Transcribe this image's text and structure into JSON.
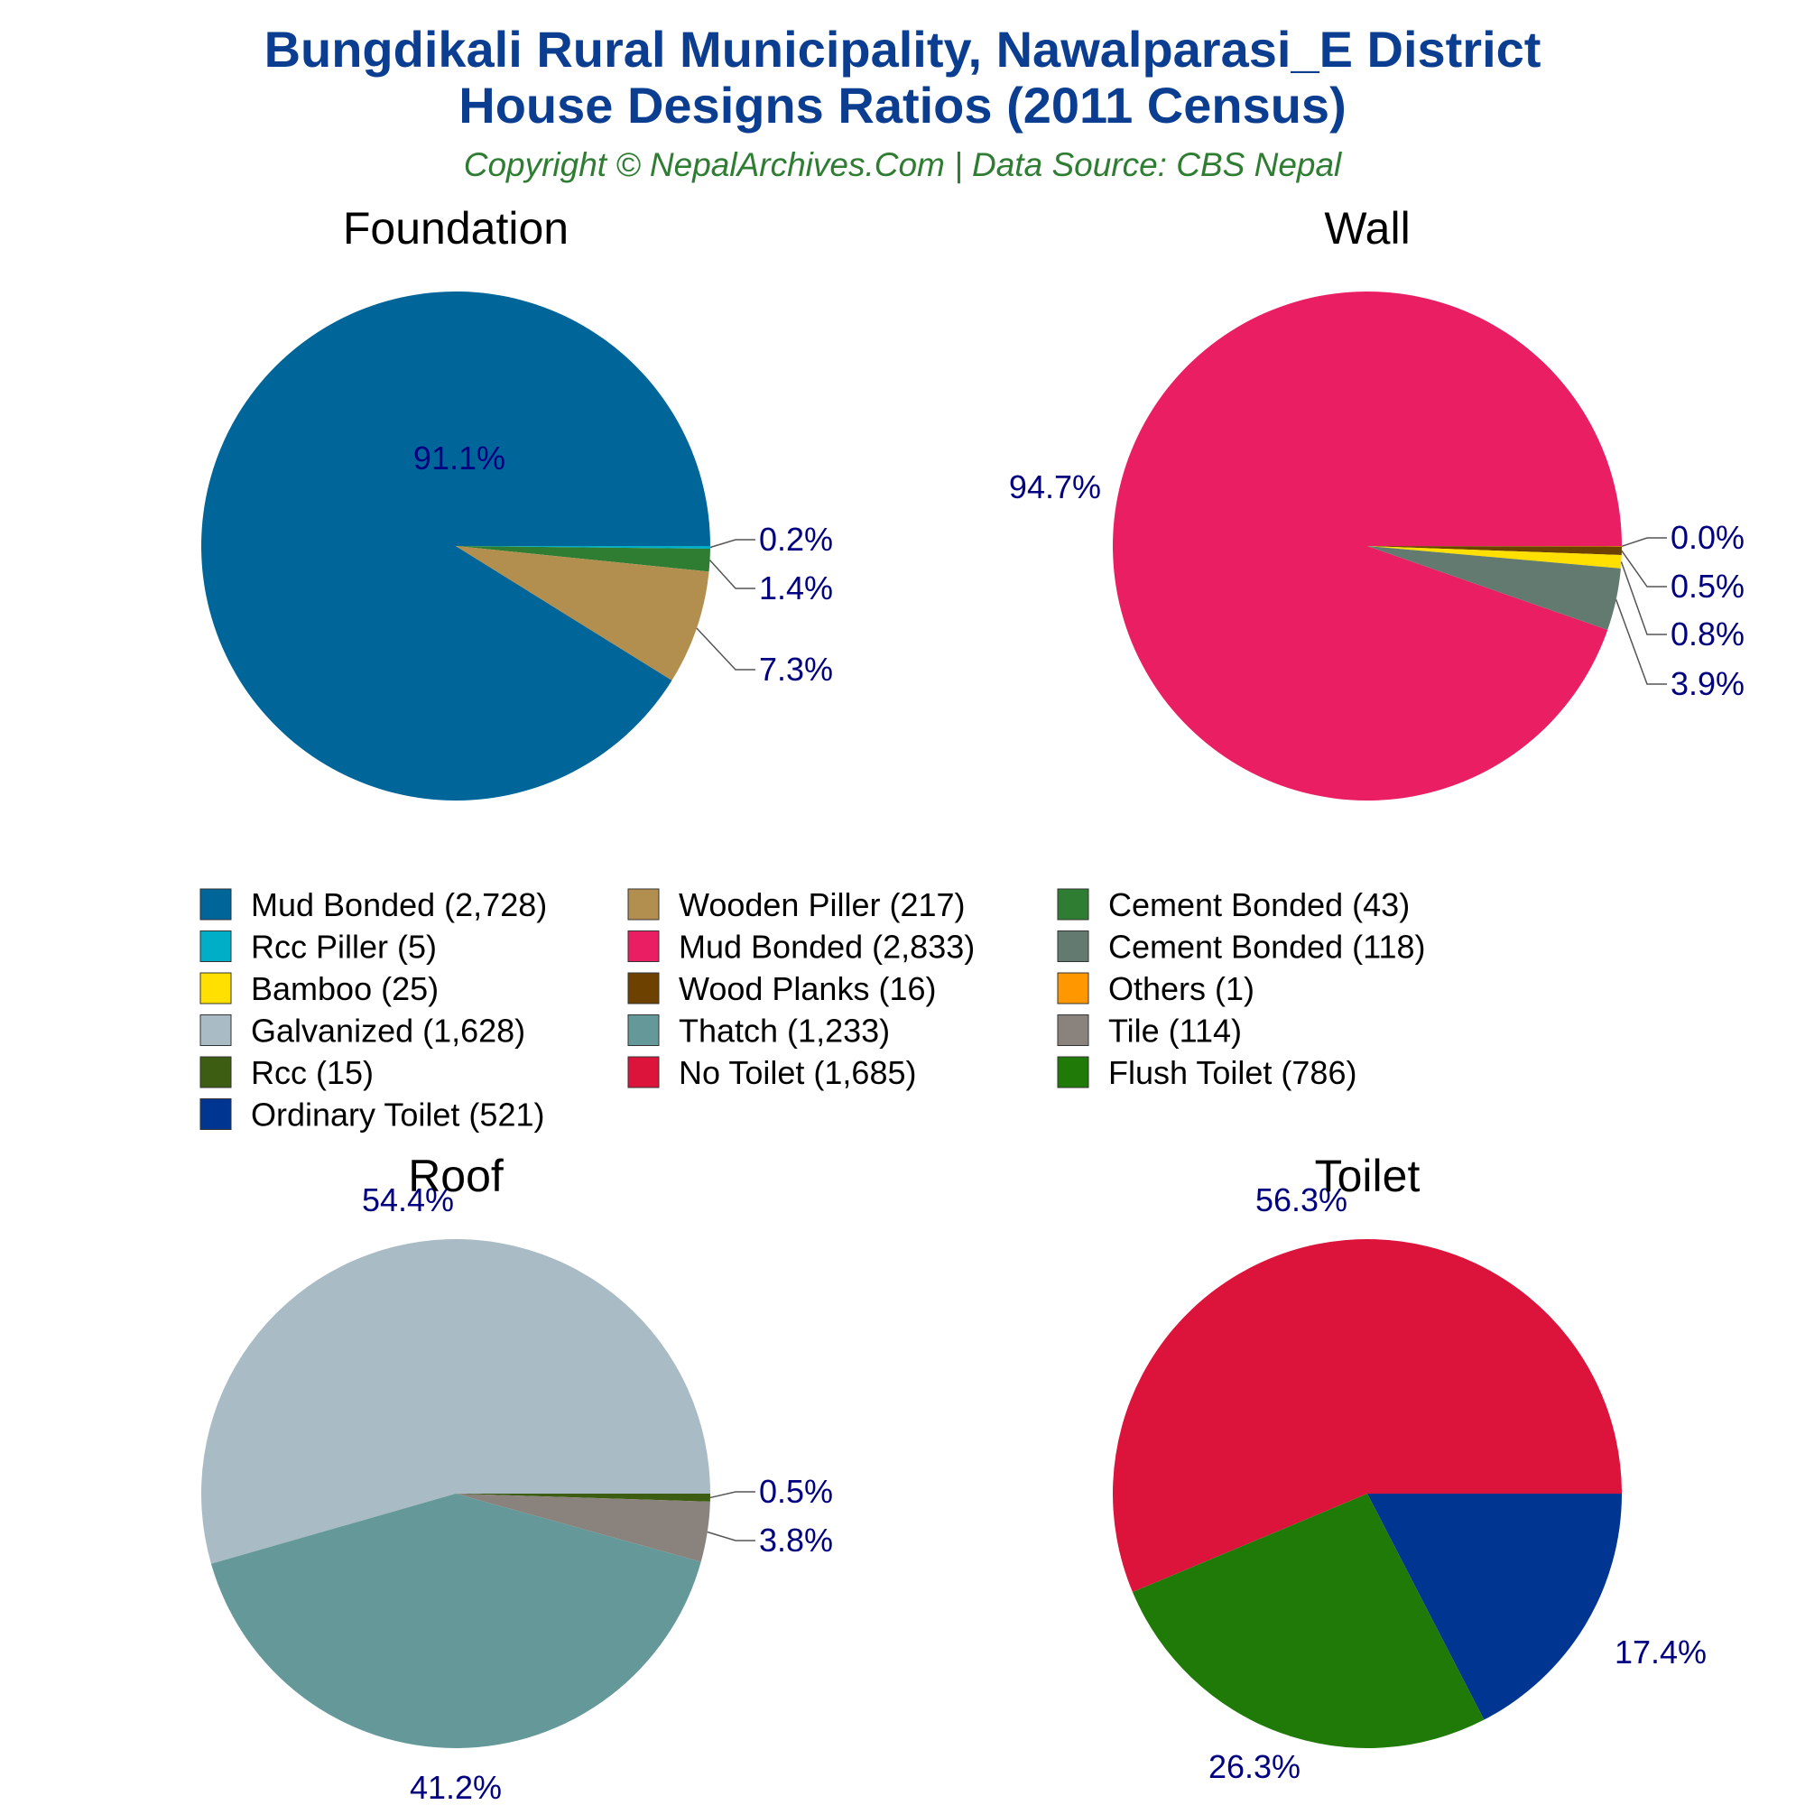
{
  "header": {
    "title_line1": "Bungdikali Rural Municipality, Nawalparasi_E District",
    "title_line2": "House Designs Ratios (2011 Census)",
    "subtitle": "Copyright © NepalArchives.Com | Data Source: CBS Nepal"
  },
  "chart_data": [
    {
      "type": "pie",
      "title": "Foundation",
      "slices": [
        {
          "label": "Mud Bonded",
          "value": 2728,
          "pct_label": "91.1%",
          "color": "#006699"
        },
        {
          "label": "Rcc Piller",
          "value": 5,
          "pct_label": "0.2%",
          "color": "#00aec7"
        },
        {
          "label": "Cement Bonded",
          "value": 43,
          "pct_label": "1.4%",
          "color": "#2e7d32"
        },
        {
          "label": "Wooden Piller",
          "value": 217,
          "pct_label": "7.3%",
          "color": "#b38f4f"
        }
      ]
    },
    {
      "type": "pie",
      "title": "Wall",
      "slices": [
        {
          "label": "Mud Bonded",
          "value": 2833,
          "pct_label": "94.7%",
          "color": "#e91e63"
        },
        {
          "label": "Others",
          "value": 1,
          "pct_label": "0.0%",
          "color": "#ff9800"
        },
        {
          "label": "Wood Planks",
          "value": 16,
          "pct_label": "0.5%",
          "color": "#6d4200"
        },
        {
          "label": "Bamboo",
          "value": 25,
          "pct_label": "0.8%",
          "color": "#ffe000"
        },
        {
          "label": "Cement Bonded",
          "value": 118,
          "pct_label": "3.9%",
          "color": "#637a70"
        }
      ]
    },
    {
      "type": "pie",
      "title": "Roof",
      "slices": [
        {
          "label": "Galvanized",
          "value": 1628,
          "pct_label": "54.4%",
          "color": "#a9bbc4"
        },
        {
          "label": "Rcc",
          "value": 15,
          "pct_label": "0.5%",
          "color": "#3d5e12"
        },
        {
          "label": "Tile",
          "value": 114,
          "pct_label": "3.8%",
          "color": "#8a827c"
        },
        {
          "label": "Thatch",
          "value": 1233,
          "pct_label": "41.2%",
          "color": "#659898"
        }
      ]
    },
    {
      "type": "pie",
      "title": "Toilet",
      "slices": [
        {
          "label": "No Toilet",
          "value": 1685,
          "pct_label": "56.3%",
          "color": "#dc143c"
        },
        {
          "label": "Ordinary Toilet",
          "value": 521,
          "pct_label": "17.4%",
          "color": "#003591"
        },
        {
          "label": "Flush Toilet",
          "value": 786,
          "pct_label": "26.3%",
          "color": "#1f7a07"
        }
      ]
    }
  ],
  "legend": [
    {
      "label": "Mud Bonded (2,728)",
      "color": "#006699"
    },
    {
      "label": "Wooden Piller (217)",
      "color": "#b38f4f"
    },
    {
      "label": "Cement Bonded (43)",
      "color": "#2e7d32"
    },
    {
      "label": "Rcc Piller (5)",
      "color": "#00aec7"
    },
    {
      "label": "Mud Bonded (2,833)",
      "color": "#e91e63"
    },
    {
      "label": "Cement Bonded (118)",
      "color": "#637a70"
    },
    {
      "label": "Bamboo (25)",
      "color": "#ffe000"
    },
    {
      "label": "Wood Planks (16)",
      "color": "#6d4200"
    },
    {
      "label": "Others (1)",
      "color": "#ff9800"
    },
    {
      "label": "Galvanized (1,628)",
      "color": "#a9bbc4"
    },
    {
      "label": "Thatch (1,233)",
      "color": "#659898"
    },
    {
      "label": "Tile (114)",
      "color": "#8a827c"
    },
    {
      "label": "Rcc (15)",
      "color": "#3d5e12"
    },
    {
      "label": "No Toilet (1,685)",
      "color": "#dc143c"
    },
    {
      "label": "Flush Toilet (786)",
      "color": "#1f7a07"
    },
    {
      "label": "Ordinary Toilet (521)",
      "color": "#003591"
    }
  ]
}
